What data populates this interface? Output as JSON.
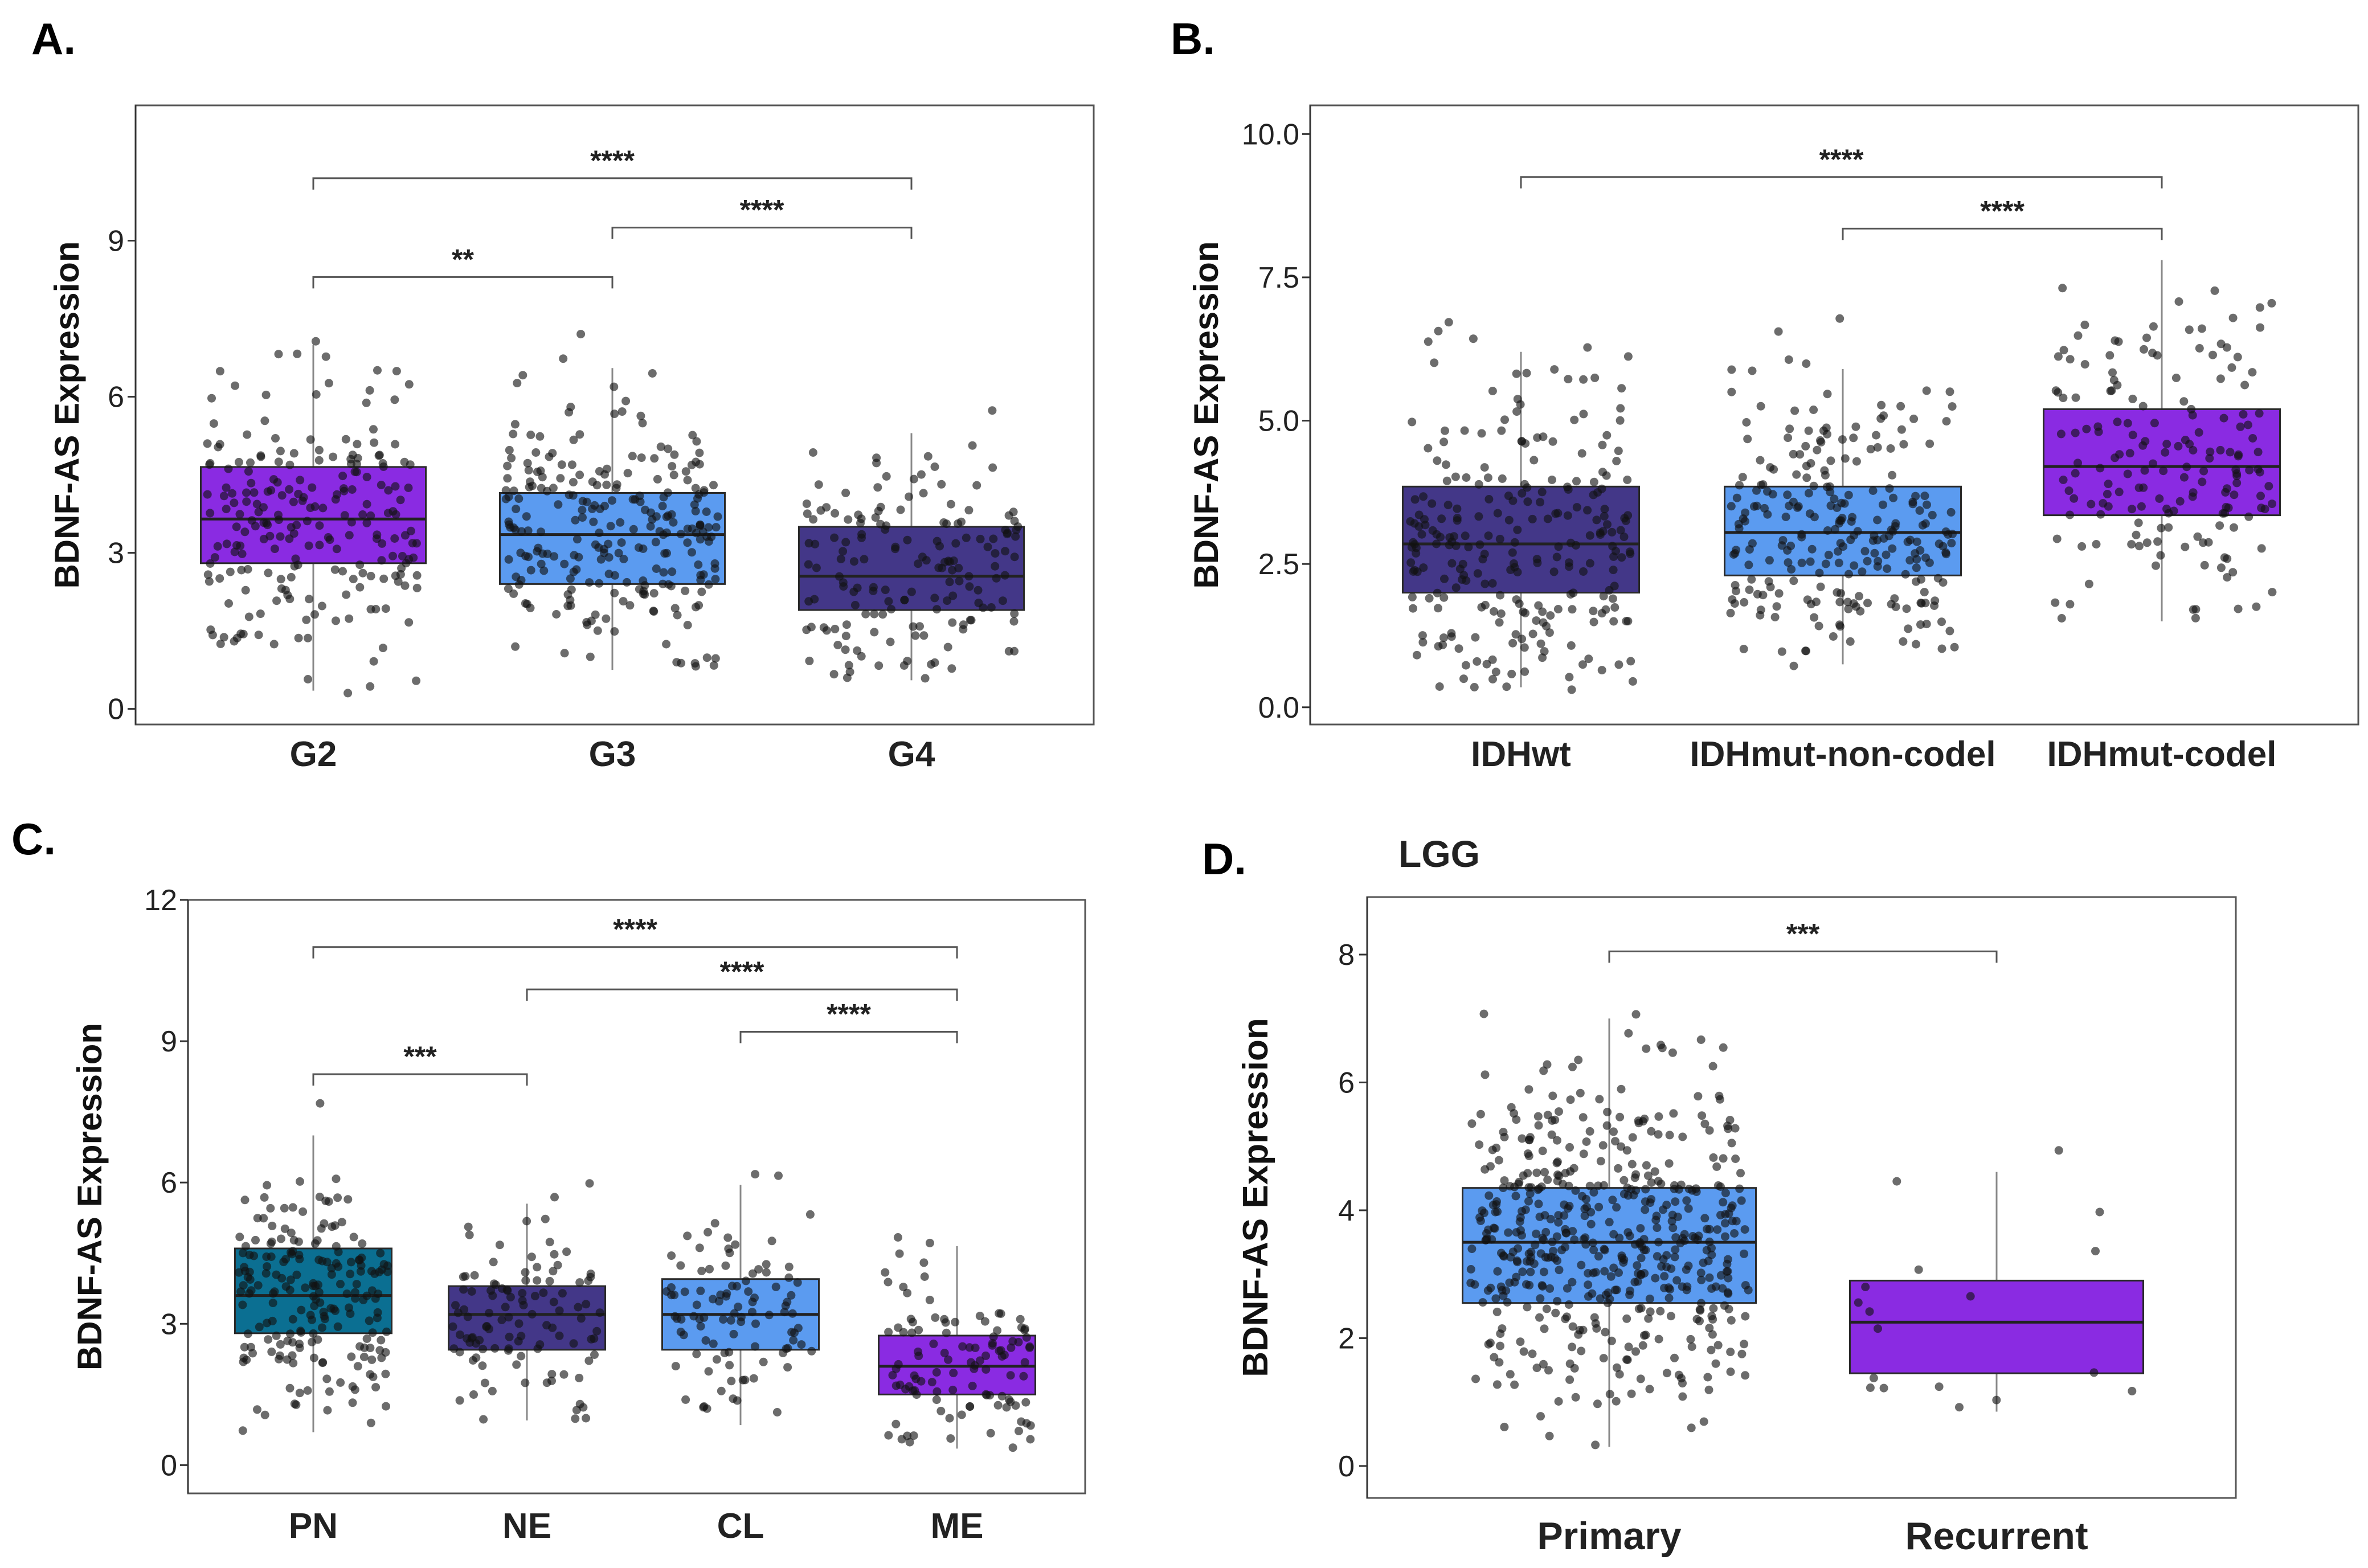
{
  "chart_data": [
    {
      "panel": "A.",
      "type": "box",
      "title": "",
      "xlabel": "",
      "ylabel": "BDNF-AS Expression",
      "ylim": [
        -0.3,
        11.6
      ],
      "yticks": [
        0,
        3,
        6,
        9
      ],
      "categories": [
        "G2",
        "G3",
        "G4"
      ],
      "boxes": [
        {
          "name": "G2",
          "q1": 2.8,
          "median": 3.65,
          "q3": 4.65,
          "whisker_low": 0.35,
          "whisker_high": 7.0,
          "color": "#8a2be2",
          "n": 220
        },
        {
          "name": "G3",
          "q1": 2.4,
          "median": 3.35,
          "q3": 4.15,
          "whisker_low": 0.75,
          "whisker_high": 6.55,
          "color": "#5b9bf0",
          "n": 250
        },
        {
          "name": "G4",
          "q1": 1.9,
          "median": 2.55,
          "q3": 3.5,
          "whisker_low": 0.55,
          "whisker_high": 5.3,
          "color": "#433788",
          "n": 160
        }
      ],
      "significance": [
        {
          "from": "G2",
          "to": "G3",
          "label": "**",
          "y": 8.3
        },
        {
          "from": "G3",
          "to": "G4",
          "label": "****",
          "y": 9.25
        },
        {
          "from": "G2",
          "to": "G4",
          "label": "****",
          "y": 10.2
        }
      ]
    },
    {
      "panel": "B.",
      "type": "box",
      "title": "",
      "xlabel": "",
      "ylabel": "BDNF-AS Expression",
      "ylim": [
        -0.3,
        10.5
      ],
      "yticks": [
        "0.0",
        "2.5",
        "5.0",
        "7.5",
        "10.0"
      ],
      "categories": [
        "IDHwt",
        "IDHmut-non-codel",
        "IDHmut-codel"
      ],
      "boxes": [
        {
          "name": "IDHwt",
          "q1": 2.0,
          "median": 2.85,
          "q3": 3.85,
          "whisker_low": 0.35,
          "whisker_high": 6.2,
          "color": "#433788",
          "n": 250
        },
        {
          "name": "IDHmut-non-codel",
          "q1": 2.3,
          "median": 3.05,
          "q3": 3.85,
          "whisker_low": 0.75,
          "whisker_high": 5.9,
          "color": "#5b9bf0",
          "n": 250
        },
        {
          "name": "IDHmut-codel",
          "q1": 3.35,
          "median": 4.2,
          "q3": 5.2,
          "whisker_low": 1.5,
          "whisker_high": 7.8,
          "color": "#8a2be2",
          "n": 170
        }
      ],
      "significance": [
        {
          "from": "IDHmut-non-codel",
          "to": "IDHmut-codel",
          "label": "****",
          "y": 8.35
        },
        {
          "from": "IDHwt",
          "to": "IDHmut-codel",
          "label": "****",
          "y": 9.25
        }
      ]
    },
    {
      "panel": "C.",
      "type": "box",
      "title": "",
      "xlabel": "",
      "ylabel": "BDNF-AS Expression",
      "ylim": [
        -0.6,
        12.0
      ],
      "yticks": [
        0,
        3,
        6,
        9,
        12
      ],
      "categories": [
        "PN",
        "NE",
        "CL",
        "ME"
      ],
      "boxes": [
        {
          "name": "PN",
          "q1": 2.8,
          "median": 3.6,
          "q3": 4.6,
          "whisker_low": 0.7,
          "whisker_high": 7.0,
          "color": "#0b6f92",
          "n": 200
        },
        {
          "name": "NE",
          "q1": 2.45,
          "median": 3.2,
          "q3": 3.8,
          "whisker_low": 0.95,
          "whisker_high": 5.55,
          "color": "#433788",
          "n": 110
        },
        {
          "name": "CL",
          "q1": 2.45,
          "median": 3.2,
          "q3": 3.95,
          "whisker_low": 0.85,
          "whisker_high": 5.95,
          "color": "#5b9bf0",
          "n": 100
        },
        {
          "name": "ME",
          "q1": 1.5,
          "median": 2.1,
          "q3": 2.75,
          "whisker_low": 0.35,
          "whisker_high": 4.65,
          "color": "#8a2be2",
          "n": 110
        }
      ],
      "significance": [
        {
          "from": "PN",
          "to": "NE",
          "label": "***",
          "y": 8.3
        },
        {
          "from": "CL",
          "to": "ME",
          "label": "****",
          "y": 9.2
        },
        {
          "from": "NE",
          "to": "ME",
          "label": "****",
          "y": 10.1
        },
        {
          "from": "PN",
          "to": "ME",
          "label": "****",
          "y": 11.0
        }
      ]
    },
    {
      "panel": "D.",
      "type": "box",
      "title": "LGG",
      "xlabel": "",
      "ylabel": "BDNF-AS Expression",
      "ylim": [
        -0.5,
        8.9
      ],
      "yticks": [
        0,
        2,
        4,
        6,
        8
      ],
      "categories": [
        "Primary",
        "Recurrent"
      ],
      "boxes": [
        {
          "name": "Primary",
          "q1": 2.55,
          "median": 3.5,
          "q3": 4.35,
          "whisker_low": 0.3,
          "whisker_high": 7.0,
          "color": "#5b9bf0",
          "n": 510
        },
        {
          "name": "Recurrent",
          "q1": 1.45,
          "median": 2.25,
          "q3": 2.9,
          "whisker_low": 0.85,
          "whisker_high": 4.6,
          "color": "#8a2be2",
          "n": 18
        }
      ],
      "significance": [
        {
          "from": "Primary",
          "to": "Recurrent",
          "label": "***",
          "y": 8.05
        }
      ]
    }
  ]
}
